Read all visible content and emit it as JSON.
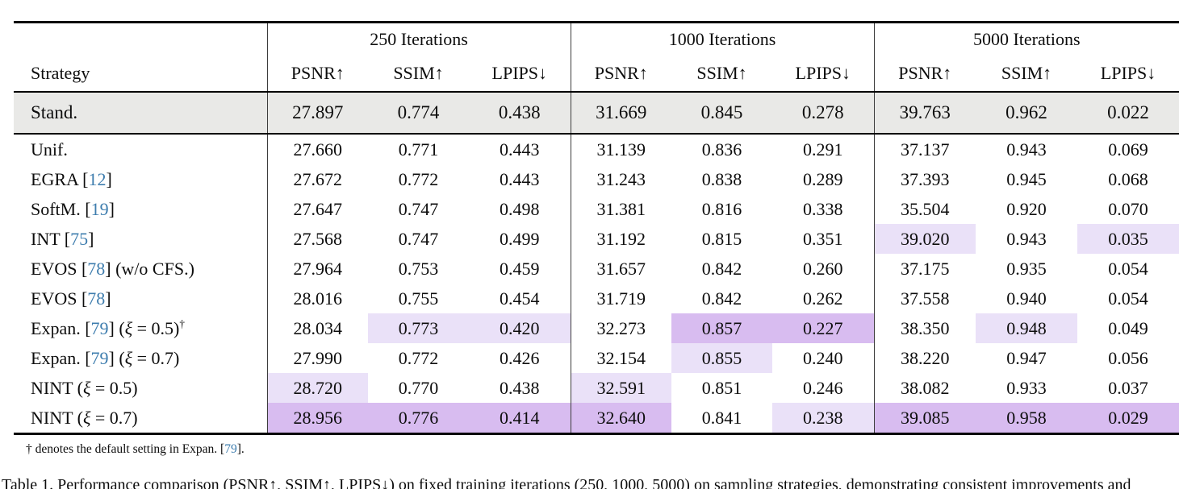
{
  "colors": {
    "highlight_best": "#d8bcf0",
    "highlight_second": "#eae1f8",
    "baseline_row_bg": "#e9e9e7",
    "citation_link": "#3e7dae",
    "rule_color": "#000000"
  },
  "table": {
    "groups": [
      "250 Iterations",
      "1000 Iterations",
      "5000 Iterations"
    ],
    "strategy_header": "Strategy",
    "metric_headers": [
      "PSNR↑",
      "SSIM↑",
      "LPIPS↓"
    ],
    "baseline": {
      "label": "Stand.",
      "cells": [
        "27.897",
        "0.774",
        "0.438",
        "31.669",
        "0.845",
        "0.278",
        "39.763",
        "0.962",
        "0.022"
      ]
    },
    "rows": [
      {
        "pre": "Unif.",
        "cells": [
          {
            "v": "27.660"
          },
          {
            "v": "0.771"
          },
          {
            "v": "0.443"
          },
          {
            "v": "31.139"
          },
          {
            "v": "0.836"
          },
          {
            "v": "0.291"
          },
          {
            "v": "37.137"
          },
          {
            "v": "0.943"
          },
          {
            "v": "0.069"
          }
        ]
      },
      {
        "pre": "EGRA [",
        "ref": "12",
        "post": "]",
        "cells": [
          {
            "v": "27.672"
          },
          {
            "v": "0.772"
          },
          {
            "v": "0.443"
          },
          {
            "v": "31.243"
          },
          {
            "v": "0.838"
          },
          {
            "v": "0.289"
          },
          {
            "v": "37.393"
          },
          {
            "v": "0.945"
          },
          {
            "v": "0.068"
          }
        ]
      },
      {
        "pre": "SoftM. [",
        "ref": "19",
        "post": "]",
        "cells": [
          {
            "v": "27.647"
          },
          {
            "v": "0.747"
          },
          {
            "v": "0.498"
          },
          {
            "v": "31.381"
          },
          {
            "v": "0.816"
          },
          {
            "v": "0.338"
          },
          {
            "v": "35.504"
          },
          {
            "v": "0.920"
          },
          {
            "v": "0.070"
          }
        ]
      },
      {
        "pre": "INT [",
        "ref": "75",
        "post": "]",
        "cells": [
          {
            "v": "27.568"
          },
          {
            "v": "0.747"
          },
          {
            "v": "0.499"
          },
          {
            "v": "31.192"
          },
          {
            "v": "0.815"
          },
          {
            "v": "0.351"
          },
          {
            "v": "39.020",
            "h": "l"
          },
          {
            "v": "0.943"
          },
          {
            "v": "0.035",
            "h": "l"
          }
        ]
      },
      {
        "pre": "EVOS [",
        "ref": "78",
        "post": "] (w/o CFS.)",
        "cells": [
          {
            "v": "27.964"
          },
          {
            "v": "0.753"
          },
          {
            "v": "0.459"
          },
          {
            "v": "31.657"
          },
          {
            "v": "0.842"
          },
          {
            "v": "0.260"
          },
          {
            "v": "37.175"
          },
          {
            "v": "0.935"
          },
          {
            "v": "0.054"
          }
        ]
      },
      {
        "pre": "EVOS [",
        "ref": "78",
        "post": "]",
        "cells": [
          {
            "v": "28.016"
          },
          {
            "v": "0.755"
          },
          {
            "v": "0.454"
          },
          {
            "v": "31.719"
          },
          {
            "v": "0.842"
          },
          {
            "v": "0.262"
          },
          {
            "v": "37.558"
          },
          {
            "v": "0.940"
          },
          {
            "v": "0.054"
          }
        ]
      },
      {
        "pre": "Expan. [",
        "ref": "79",
        "post": "] (ξ = 0.5)",
        "sup": "†",
        "cells": [
          {
            "v": "28.034"
          },
          {
            "v": "0.773",
            "h": "l"
          },
          {
            "v": "0.420",
            "h": "l"
          },
          {
            "v": "32.273"
          },
          {
            "v": "0.857",
            "h": "d"
          },
          {
            "v": "0.227",
            "h": "d"
          },
          {
            "v": "38.350"
          },
          {
            "v": "0.948",
            "h": "l"
          },
          {
            "v": "0.049"
          }
        ]
      },
      {
        "pre": "Expan. [",
        "ref": "79",
        "post": "] (ξ = 0.7)",
        "cells": [
          {
            "v": "27.990"
          },
          {
            "v": "0.772"
          },
          {
            "v": "0.426"
          },
          {
            "v": "32.154"
          },
          {
            "v": "0.855",
            "h": "l"
          },
          {
            "v": "0.240"
          },
          {
            "v": "38.220"
          },
          {
            "v": "0.947"
          },
          {
            "v": "0.056"
          }
        ]
      },
      {
        "pre": "NINT (ξ = 0.5)",
        "cells": [
          {
            "v": "28.720",
            "h": "l"
          },
          {
            "v": "0.770"
          },
          {
            "v": "0.438"
          },
          {
            "v": "32.591",
            "h": "l"
          },
          {
            "v": "0.851"
          },
          {
            "v": "0.246"
          },
          {
            "v": "38.082"
          },
          {
            "v": "0.933"
          },
          {
            "v": "0.037"
          }
        ]
      },
      {
        "pre": "NINT (ξ = 0.7)",
        "cells": [
          {
            "v": "28.956",
            "h": "d"
          },
          {
            "v": "0.776",
            "h": "d"
          },
          {
            "v": "0.414",
            "h": "d"
          },
          {
            "v": "32.640",
            "h": "d"
          },
          {
            "v": "0.841"
          },
          {
            "v": "0.238",
            "h": "l"
          },
          {
            "v": "39.085",
            "h": "d"
          },
          {
            "v": "0.958",
            "h": "d"
          },
          {
            "v": "0.029",
            "h": "d"
          }
        ]
      }
    ]
  },
  "footnote": {
    "pre": "† denotes the default setting in Expan. [",
    "ref": "79",
    "post": "]."
  },
  "caption": "Table 1. Performance comparison (PSNR↑, SSIM↑, LPIPS↓) on fixed training iterations (250, 1000, 5000) on sampling strategies, demonstrating consistent improvements and"
}
